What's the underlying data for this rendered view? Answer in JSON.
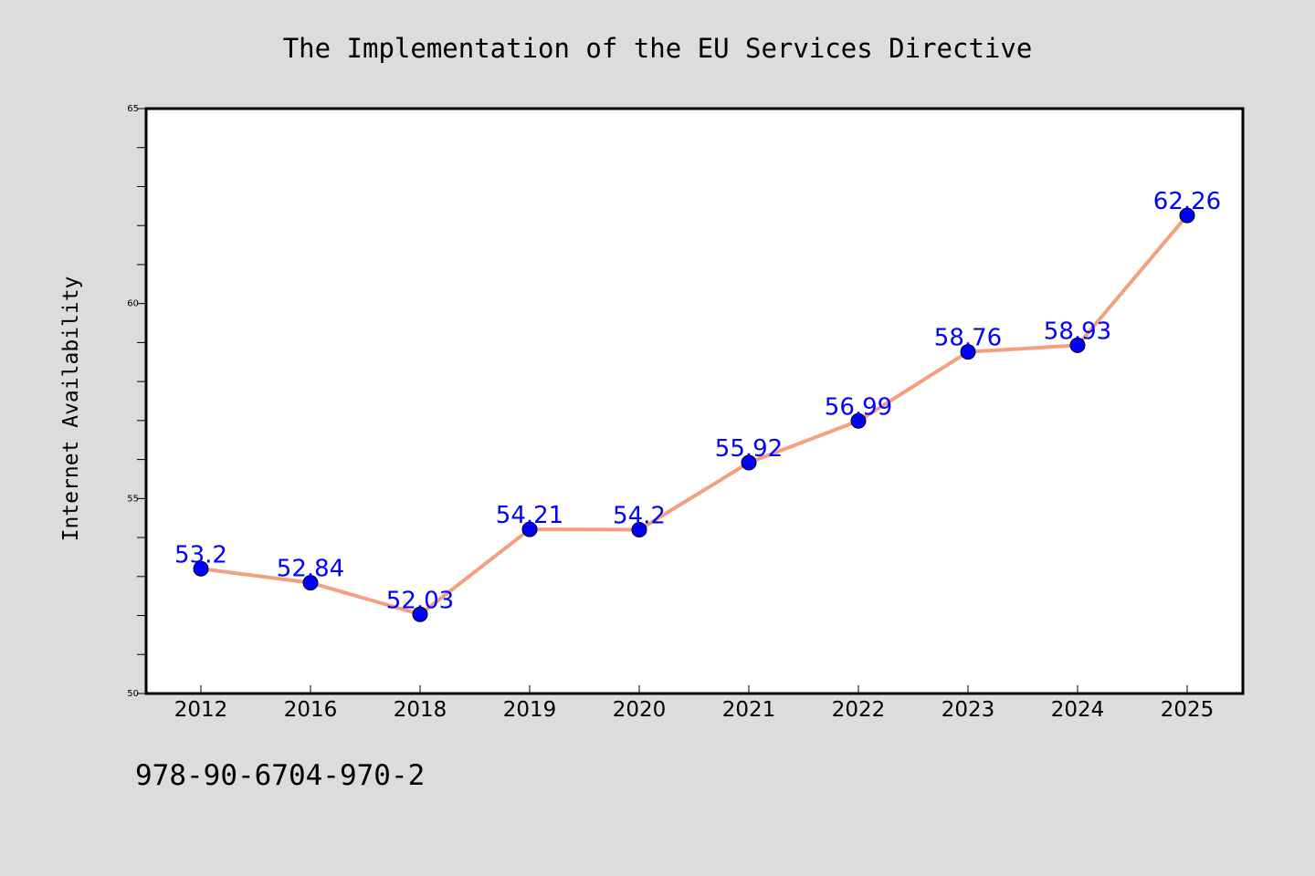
{
  "footer": {
    "isbn": "978-90-6704-970-2"
  },
  "colors": {
    "background": "#dcdcdc",
    "plot_background": "#ffffff",
    "line": "#f4a07f",
    "marker": "#0000ff",
    "data_label": "#0000ff"
  },
  "chart_data": {
    "type": "line",
    "title": "The Implementation of the EU Services Directive",
    "xlabel": "",
    "ylabel": "Internet Availability",
    "categories": [
      "2012",
      "2016",
      "2018",
      "2019",
      "2020",
      "2021",
      "2022",
      "2023",
      "2024",
      "2025"
    ],
    "series": [
      {
        "values": [
          53.2,
          52.84,
          52.03,
          54.21,
          54.2,
          55.92,
          56.99,
          58.76,
          58.93,
          62.26
        ],
        "data_labels": [
          "53.2",
          "52.84",
          "52.03",
          "54.21",
          "54.2",
          "55.92",
          "56.99",
          "58.76",
          "58.93",
          "62.26"
        ]
      }
    ],
    "ylim": [
      50,
      65
    ],
    "yticks": [
      50,
      55,
      60,
      65
    ],
    "ytick_labels": [
      "50",
      "55",
      "60",
      "65"
    ],
    "y_minor_step": 1,
    "grid": false,
    "legend": "none"
  }
}
